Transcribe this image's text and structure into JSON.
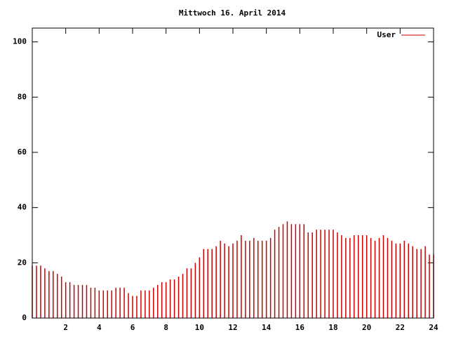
{
  "chart_data": {
    "type": "impulse",
    "title": "Mittwoch 16. April 2014",
    "series": [
      {
        "name": "User",
        "color": "#cc0000",
        "x": [
          0,
          0.25,
          0.5,
          0.75,
          1,
          1.25,
          1.5,
          1.75,
          2,
          2.25,
          2.5,
          2.75,
          3,
          3.25,
          3.5,
          3.75,
          4,
          4.25,
          4.5,
          4.75,
          5,
          5.25,
          5.5,
          5.75,
          6,
          6.25,
          6.5,
          6.75,
          7,
          7.25,
          7.5,
          7.75,
          8,
          8.25,
          8.5,
          8.75,
          9,
          9.25,
          9.5,
          9.75,
          10,
          10.25,
          10.5,
          10.75,
          11,
          11.25,
          11.5,
          11.75,
          12,
          12.25,
          12.5,
          12.75,
          13,
          13.25,
          13.5,
          13.75,
          14,
          14.25,
          14.5,
          14.75,
          15,
          15.25,
          15.5,
          15.75,
          16,
          16.25,
          16.5,
          16.75,
          17,
          17.25,
          17.5,
          17.75,
          18,
          18.25,
          18.5,
          18.75,
          19,
          19.25,
          19.5,
          19.75,
          20,
          20.25,
          20.5,
          20.75,
          21,
          21.25,
          21.5,
          21.75,
          22,
          22.25,
          22.5,
          22.75,
          23,
          23.25,
          23.5,
          23.75,
          24
        ],
        "values": [
          19,
          19,
          19,
          18,
          17,
          17,
          16,
          15,
          13,
          13,
          12,
          12,
          12,
          12,
          11,
          11,
          10,
          10,
          10,
          10,
          11,
          11,
          11,
          9,
          8,
          8,
          10,
          10,
          10,
          11,
          12,
          13,
          13,
          14,
          14,
          15,
          16,
          18,
          18,
          20,
          22,
          25,
          25,
          25,
          26,
          28,
          27,
          26,
          27,
          28,
          30,
          28,
          28,
          29,
          28,
          28,
          28,
          29,
          32,
          33,
          34,
          35,
          34,
          34,
          34,
          34,
          31,
          31,
          32,
          32,
          32,
          32,
          32,
          31,
          30,
          29,
          29,
          30,
          30,
          30,
          30,
          29,
          28,
          29,
          30,
          29,
          28,
          27,
          27,
          28,
          27,
          26,
          25,
          25,
          26,
          23,
          23
        ]
      }
    ],
    "xlim": [
      0,
      24
    ],
    "xticks": [
      2,
      4,
      6,
      8,
      10,
      12,
      14,
      16,
      18,
      20,
      22,
      24
    ],
    "ylim": [
      0,
      105
    ],
    "yticks": [
      0,
      20,
      40,
      60,
      80,
      100
    ]
  }
}
